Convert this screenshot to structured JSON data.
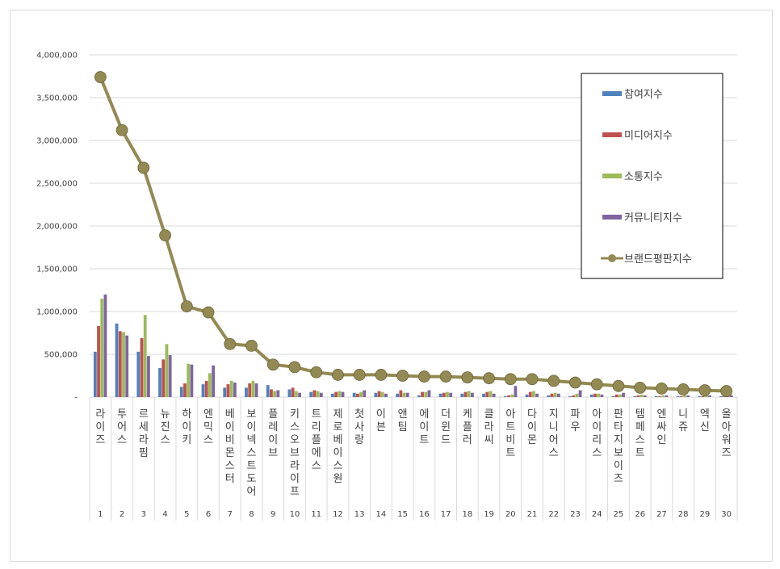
{
  "chart_data": {
    "type": "bar",
    "ylim": [
      0,
      4000000
    ],
    "y_ticks": [
      "-",
      "500,000",
      "1,000,000",
      "1,500,000",
      "2,000,000",
      "2,500,000",
      "3,000,000",
      "3,500,000",
      "4,000,000"
    ],
    "grid": true,
    "legend_position": "top-right",
    "categories": [
      "라이즈",
      "투어스",
      "르세라핌",
      "뉴진스",
      "하이키",
      "엔믹스",
      "베이비몬스터",
      "보이넥스트도어",
      "플레이브",
      "키스오브라이프",
      "트리플에스",
      "제로베이스원",
      "첫사랑",
      "이븐",
      "앤팀",
      "에이트",
      "더윈드",
      "케플러",
      "클라씨",
      "아트비트",
      "다이몬",
      "지니어스",
      "파우",
      "아이리스",
      "판타지보이즈",
      "템페스트",
      "엔싸인",
      "니쥬",
      "엑신",
      "올아워즈"
    ],
    "ranks": [
      "1",
      "2",
      "3",
      "4",
      "5",
      "6",
      "7",
      "8",
      "9",
      "10",
      "11",
      "12",
      "13",
      "14",
      "15",
      "16",
      "17",
      "18",
      "19",
      "20",
      "21",
      "22",
      "23",
      "24",
      "25",
      "26",
      "27",
      "28",
      "29",
      "30"
    ],
    "series": [
      {
        "name": "참여지수",
        "kind": "bar",
        "color": "#4f81bd",
        "values": [
          530000,
          860000,
          530000,
          340000,
          120000,
          150000,
          110000,
          110000,
          140000,
          90000,
          60000,
          40000,
          50000,
          50000,
          40000,
          20000,
          40000,
          40000,
          40000,
          10000,
          30000,
          20000,
          10000,
          30000,
          10000,
          10000,
          10000,
          10000,
          10000,
          10000
        ]
      },
      {
        "name": "미디어지수",
        "kind": "bar",
        "color": "#c0504d",
        "values": [
          830000,
          770000,
          690000,
          440000,
          160000,
          190000,
          150000,
          160000,
          90000,
          110000,
          80000,
          60000,
          40000,
          70000,
          80000,
          60000,
          50000,
          60000,
          60000,
          20000,
          60000,
          40000,
          20000,
          40000,
          30000,
          20000,
          10000,
          10000,
          10000,
          10000
        ]
      },
      {
        "name": "소통지수",
        "kind": "bar",
        "color": "#9bbb59",
        "values": [
          1150000,
          760000,
          960000,
          620000,
          390000,
          280000,
          190000,
          190000,
          70000,
          70000,
          70000,
          70000,
          60000,
          60000,
          50000,
          60000,
          60000,
          70000,
          70000,
          30000,
          70000,
          50000,
          40000,
          40000,
          30000,
          30000,
          20000,
          20000,
          20000,
          20000
        ]
      },
      {
        "name": "커뮤니티지수",
        "kind": "bar",
        "color": "#8064a2",
        "values": [
          1200000,
          720000,
          480000,
          490000,
          380000,
          370000,
          170000,
          160000,
          80000,
          50000,
          50000,
          60000,
          80000,
          40000,
          50000,
          80000,
          50000,
          50000,
          40000,
          130000,
          40000,
          40000,
          80000,
          30000,
          50000,
          20000,
          20000,
          20000,
          20000,
          20000
        ]
      },
      {
        "name": "브랜드평판지수",
        "kind": "line",
        "color": "#938953",
        "values": [
          3740000,
          3120000,
          2680000,
          1890000,
          1060000,
          990000,
          620000,
          600000,
          380000,
          350000,
          290000,
          260000,
          260000,
          260000,
          250000,
          240000,
          240000,
          230000,
          220000,
          210000,
          210000,
          190000,
          170000,
          150000,
          130000,
          110000,
          100000,
          90000,
          80000,
          70000
        ]
      }
    ]
  }
}
